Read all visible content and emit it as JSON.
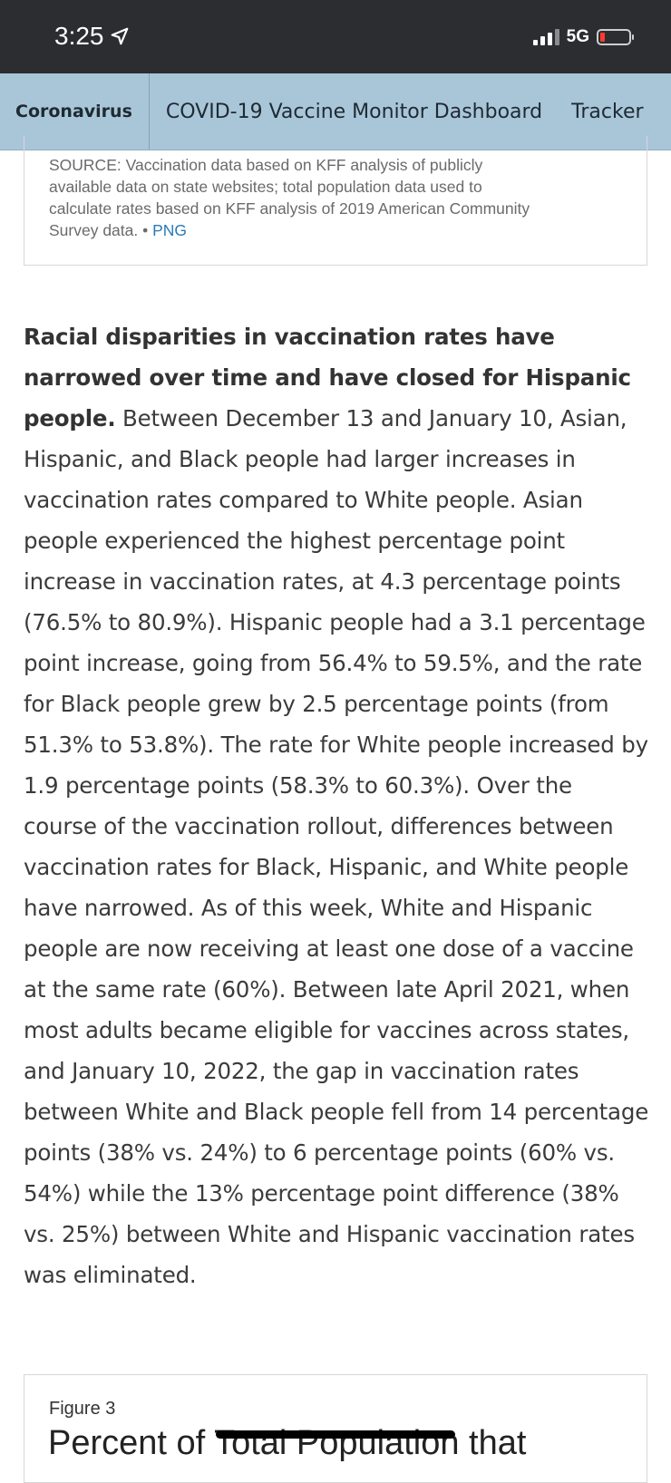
{
  "status_bar": {
    "time": "3:25",
    "network": "5G",
    "icons": [
      "location-arrow-icon",
      "signal-icon",
      "battery-icon"
    ],
    "battery_color": "#ff3b30"
  },
  "nav": {
    "items": [
      {
        "label": "Coronavirus"
      },
      {
        "label": "COVID-19 Vaccine Monitor Dashboard"
      },
      {
        "label": "Tracker"
      }
    ],
    "background": "#a9c6d9"
  },
  "source_note": {
    "text": "SOURCE: Vaccination data based on KFF analysis of publicly available data on state websites; total population data used to calculate rates based on KFF analysis of 2019 American Community Survey data. •",
    "link_label": "PNG",
    "link_color": "#2a7ab8"
  },
  "article": {
    "lead": "Racial disparities in vaccination rates have narrowed over time and have closed for Hispanic people.",
    "body": "Between December 13 and January 10, Asian, Hispanic, and Black people had larger increases in vaccination rates compared to White people. Asian people experienced the highest percentage point increase in vaccination rates, at 4.3 percentage points (76.5% to 80.9%). Hispanic people had a 3.1 percentage point increase, going from 56.4% to 59.5%, and the rate for Black people grew by 2.5 percentage points (from 51.3% to 53.8%). The rate for White people increased by 1.9 percentage points (58.3% to 60.3%). Over the course of the vaccination rollout, differences between vaccination rates for Black, Hispanic, and White people have narrowed. As of this week, White and Hispanic people are now receiving at least one dose of a vaccine at the same rate (60%). Between late April 2021, when most adults became eligible for vaccines across states, and January 10, 2022, the gap in vaccination rates between White and Black people fell from 14 percentage points (38% vs. 24%) to 6 percentage points (60% vs. 54%) while the 13% percentage point difference (38% vs. 25%) between White and Hispanic vaccination rates was eliminated."
  },
  "figure": {
    "label": "Figure 3",
    "title": "Percent of Total Population that"
  }
}
